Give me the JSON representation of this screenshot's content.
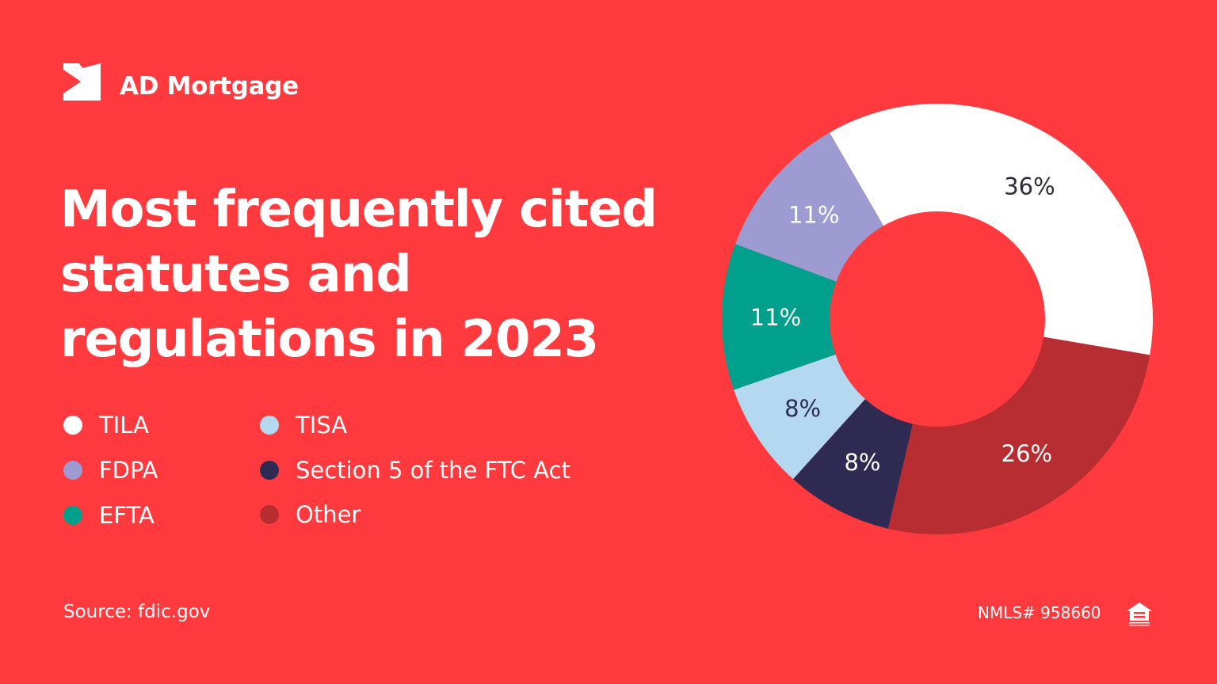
{
  "brand": {
    "name": "AD Mortgage",
    "logo_icon": "ad-mortgage-logo"
  },
  "title": "Most frequently cited statutes and regulations in 2023",
  "colors": {
    "background": "#ff3a3f",
    "TILA": "#ffffff",
    "FDPA": "#9d9bd1",
    "EFTA": "#00a08c",
    "TISA": "#b3d8f0",
    "Section 5 of the FTC Act": "#2f2a52",
    "Other": "#b72d31"
  },
  "chart_data": {
    "type": "pie",
    "variant": "donut",
    "title": "Most frequently cited statutes and regulations in 2023",
    "categories": [
      "TILA",
      "Other",
      "Section 5 of the FTC Act",
      "TISA",
      "EFTA",
      "FDPA"
    ],
    "values": [
      36,
      26,
      8,
      8,
      11,
      11
    ],
    "labels": [
      "36%",
      "26%",
      "8%",
      "8%",
      "11%",
      "11%"
    ],
    "unit": "%",
    "legend_position": "left",
    "legend_order": [
      "TILA",
      "TISA",
      "FDPA",
      "Section 5 of the FTC Act",
      "EFTA",
      "Other"
    ]
  },
  "footer": {
    "source": "Source: fdic.gov",
    "nmls": "NMLS# 958660",
    "eho_icon": "equal-housing-opportunity-icon"
  }
}
